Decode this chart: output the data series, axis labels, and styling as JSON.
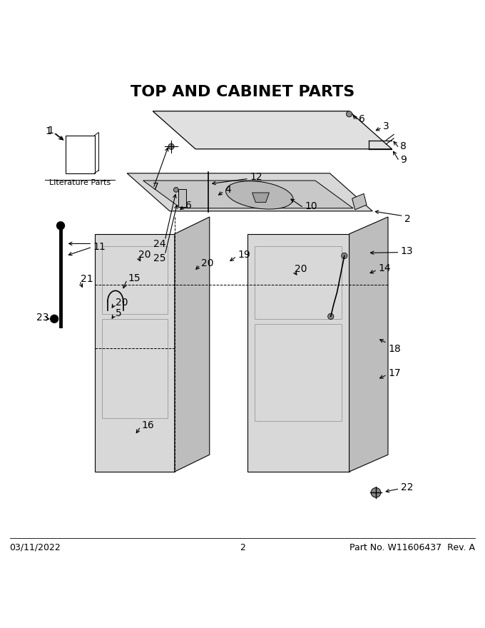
{
  "title": "TOP AND CABINET PARTS",
  "footer_left": "03/11/2022",
  "footer_center": "2",
  "footer_right": "Part No. W11606437  Rev. A",
  "bg_color": "#ffffff",
  "title_fontsize": 16,
  "label_fontsize": 10,
  "footer_fontsize": 9
}
